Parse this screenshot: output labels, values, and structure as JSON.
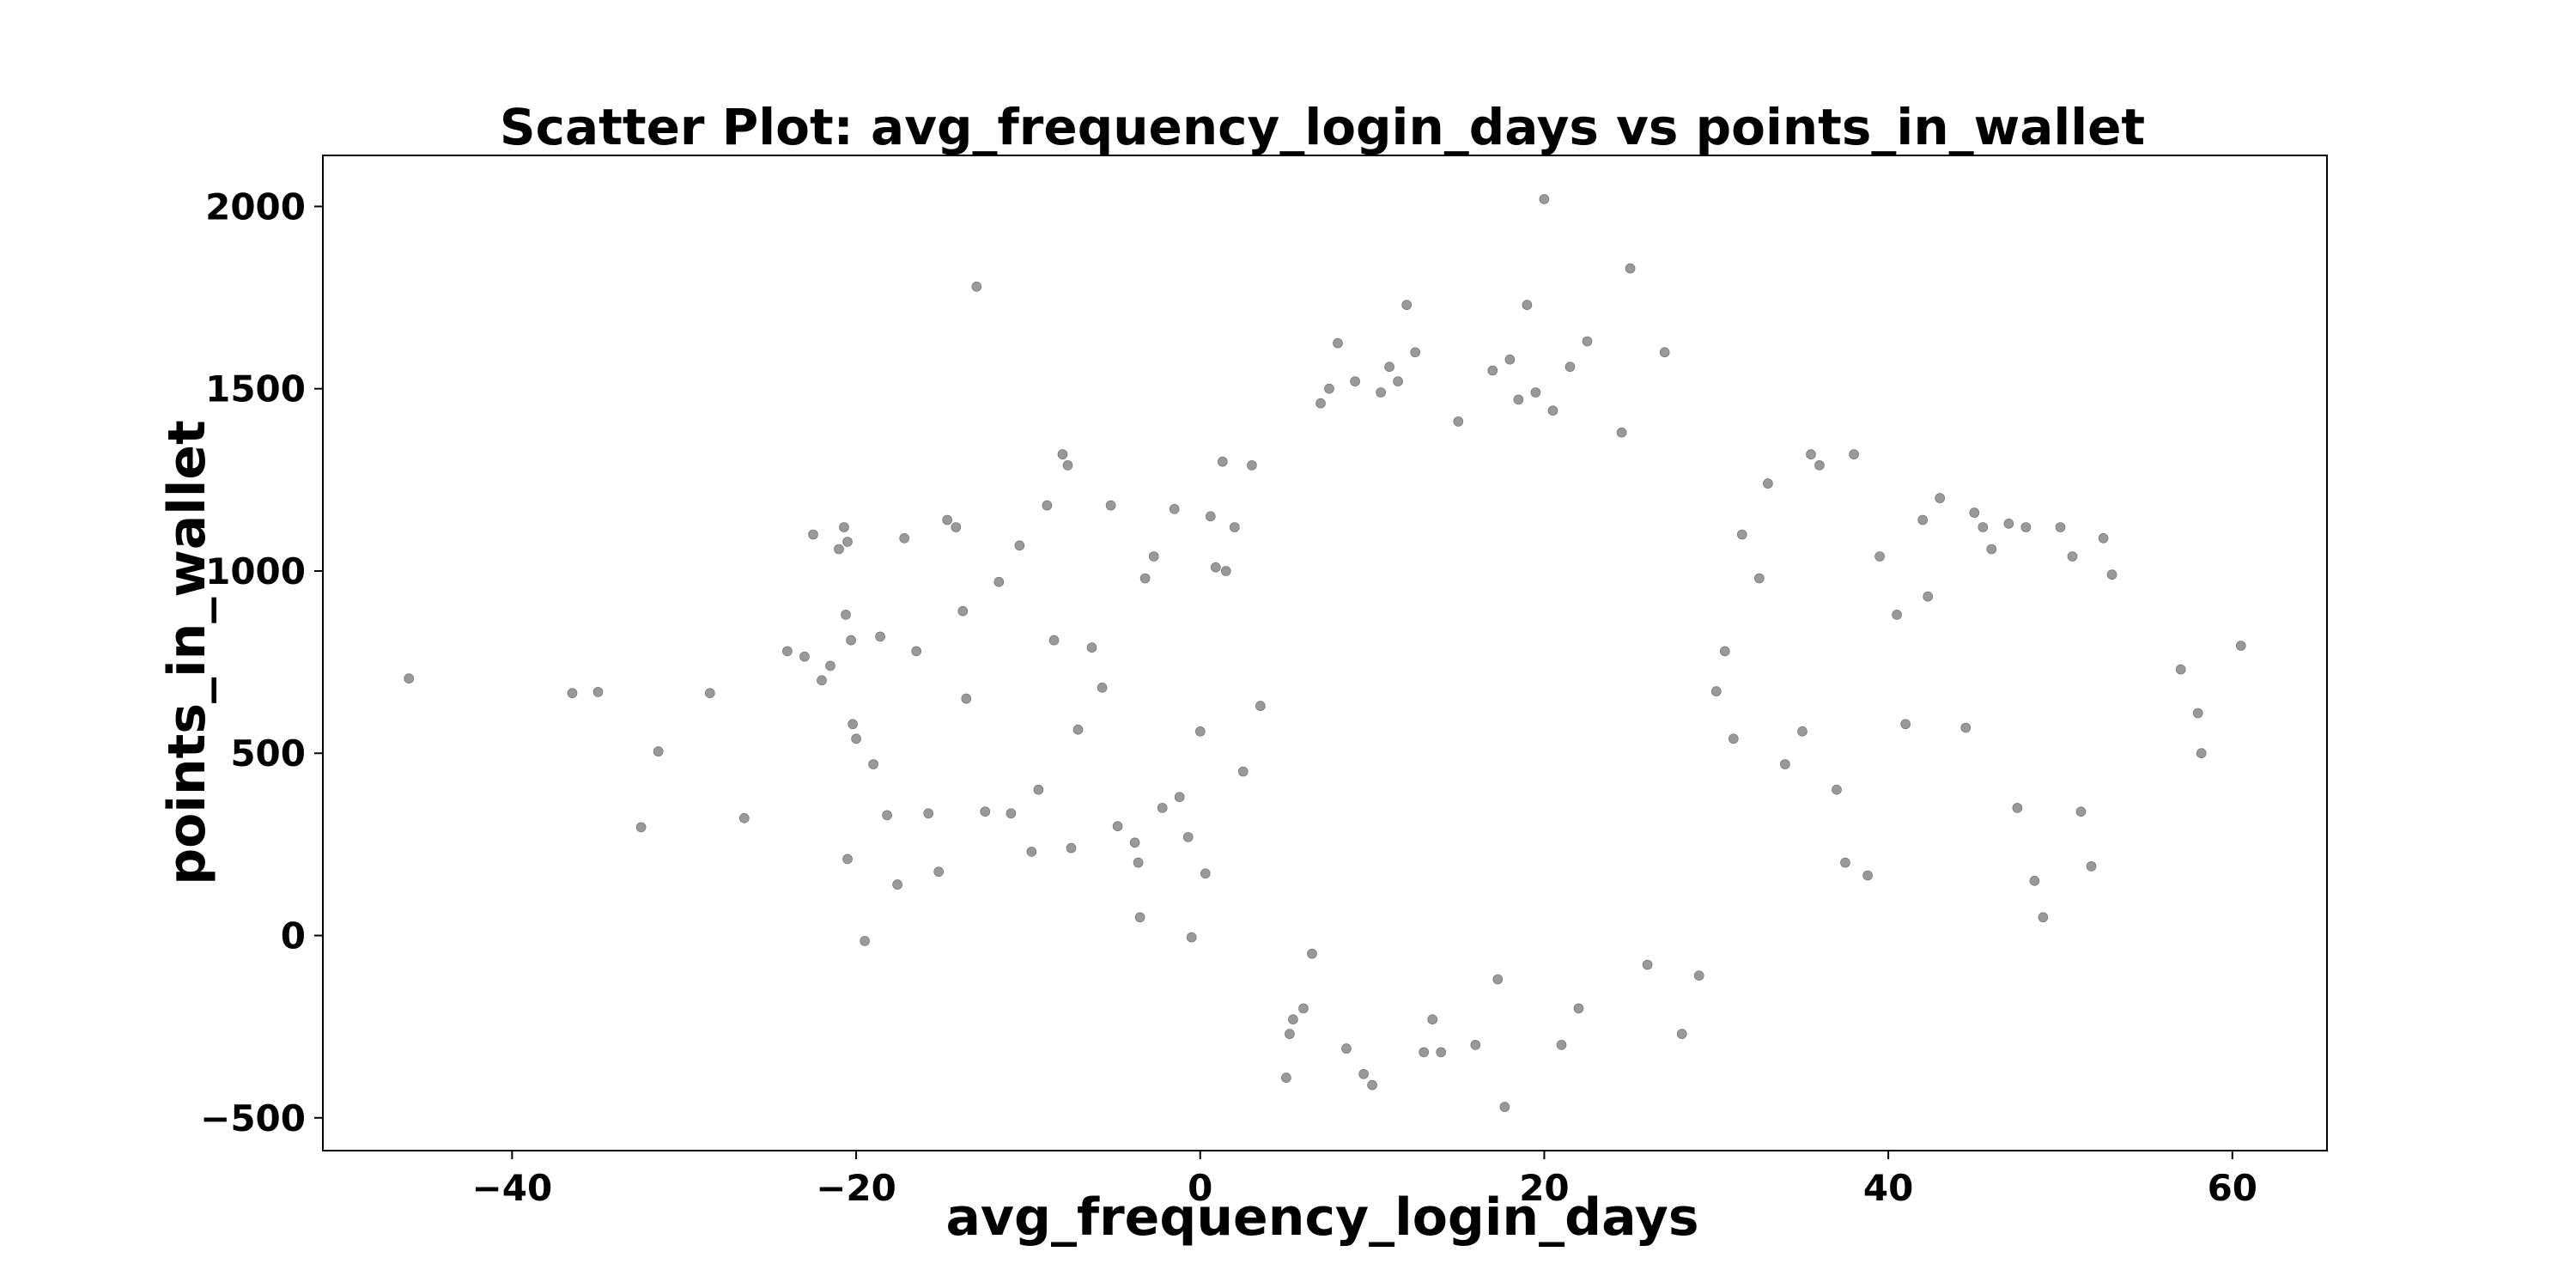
{
  "chart_data": {
    "type": "scatter",
    "title": "Scatter Plot: avg_frequency_login_days vs points_in_wallet",
    "xlabel": "avg_frequency_login_days",
    "ylabel": "points_in_wallet",
    "xlim": [
      -51,
      65.5
    ],
    "ylim": [
      -590,
      2140
    ],
    "xticks": [
      -40,
      -20,
      0,
      20,
      40,
      60
    ],
    "yticks": [
      -500,
      0,
      500,
      1000,
      1500,
      2000
    ],
    "xtick_labels": [
      "−40",
      "−20",
      "0",
      "20",
      "40",
      "60"
    ],
    "ytick_labels": [
      "−500",
      "0",
      "500",
      "1000",
      "1500",
      "2000"
    ],
    "grid": false,
    "series": [
      {
        "color": "#808080",
        "points": [
          [
            -46,
            705
          ],
          [
            -36.5,
            665
          ],
          [
            -35,
            668
          ],
          [
            -31.5,
            505
          ],
          [
            -32.5,
            297
          ],
          [
            -28.5,
            665
          ],
          [
            -26.5,
            322
          ],
          [
            -24,
            780
          ],
          [
            -23,
            765
          ],
          [
            -22.5,
            1100
          ],
          [
            -22,
            700
          ],
          [
            -21.5,
            740
          ],
          [
            -21,
            1060
          ],
          [
            -20.7,
            1120
          ],
          [
            -20.5,
            1080
          ],
          [
            -20.6,
            880
          ],
          [
            -20.3,
            810
          ],
          [
            -20.2,
            580
          ],
          [
            -20,
            540
          ],
          [
            -20.5,
            210
          ],
          [
            -19.5,
            -15
          ],
          [
            -19,
            470
          ],
          [
            -18.6,
            820
          ],
          [
            -18.2,
            330
          ],
          [
            -17.6,
            140
          ],
          [
            -17.2,
            1090
          ],
          [
            -16.5,
            780
          ],
          [
            -15.8,
            335
          ],
          [
            -15.2,
            175
          ],
          [
            -14.7,
            1140
          ],
          [
            -14.2,
            1120
          ],
          [
            -13.8,
            890
          ],
          [
            -13.6,
            650
          ],
          [
            -13,
            1780
          ],
          [
            -12.5,
            340
          ],
          [
            -11.7,
            970
          ],
          [
            -11,
            335
          ],
          [
            -10.5,
            1070
          ],
          [
            -9.8,
            230
          ],
          [
            -9.4,
            400
          ],
          [
            -8.9,
            1180
          ],
          [
            -8.5,
            810
          ],
          [
            -8,
            1320
          ],
          [
            -7.7,
            1290
          ],
          [
            -7.5,
            240
          ],
          [
            -7.1,
            565
          ],
          [
            -6.3,
            790
          ],
          [
            -5.7,
            680
          ],
          [
            -5.2,
            1180
          ],
          [
            -4.8,
            300
          ],
          [
            -3.8,
            255
          ],
          [
            -3.6,
            200
          ],
          [
            -3.5,
            50
          ],
          [
            -3.2,
            980
          ],
          [
            -2.7,
            1040
          ],
          [
            -2.2,
            350
          ],
          [
            -1.5,
            1170
          ],
          [
            -1.2,
            380
          ],
          [
            -0.7,
            270
          ],
          [
            -0.5,
            -5
          ],
          [
            0,
            560
          ],
          [
            0.3,
            170
          ],
          [
            0.6,
            1150
          ],
          [
            0.9,
            1010
          ],
          [
            1.3,
            1300
          ],
          [
            1.5,
            1000
          ],
          [
            2,
            1120
          ],
          [
            2.5,
            450
          ],
          [
            3,
            1290
          ],
          [
            3.5,
            630
          ],
          [
            5,
            -390
          ],
          [
            5.2,
            -270
          ],
          [
            5.4,
            -230
          ],
          [
            6,
            -200
          ],
          [
            6.5,
            -50
          ],
          [
            7,
            1460
          ],
          [
            7.5,
            1500
          ],
          [
            8,
            1625
          ],
          [
            8.5,
            -310
          ],
          [
            9,
            1520
          ],
          [
            9.5,
            -380
          ],
          [
            10,
            -410
          ],
          [
            10.5,
            1490
          ],
          [
            11,
            1560
          ],
          [
            11.5,
            1520
          ],
          [
            12,
            1730
          ],
          [
            12.5,
            1600
          ],
          [
            13,
            -320
          ],
          [
            13.5,
            -230
          ],
          [
            14,
            -320
          ],
          [
            15,
            1410
          ],
          [
            16,
            -300
          ],
          [
            17,
            1550
          ],
          [
            17.3,
            -120
          ],
          [
            17.7,
            -470
          ],
          [
            18,
            1580
          ],
          [
            18.5,
            1470
          ],
          [
            19,
            1730
          ],
          [
            19.5,
            1490
          ],
          [
            20,
            2020
          ],
          [
            20.5,
            1440
          ],
          [
            21,
            -300
          ],
          [
            21.5,
            1560
          ],
          [
            22,
            -200
          ],
          [
            22.5,
            1630
          ],
          [
            24.5,
            1380
          ],
          [
            25,
            1830
          ],
          [
            26,
            -80
          ],
          [
            27,
            1600
          ],
          [
            28,
            -270
          ],
          [
            29,
            -110
          ],
          [
            30,
            670
          ],
          [
            30.5,
            780
          ],
          [
            31,
            540
          ],
          [
            31.5,
            1100
          ],
          [
            32.5,
            980
          ],
          [
            33,
            1240
          ],
          [
            34,
            470
          ],
          [
            35,
            560
          ],
          [
            35.5,
            1320
          ],
          [
            36,
            1290
          ],
          [
            37,
            400
          ],
          [
            37.5,
            200
          ],
          [
            38,
            1320
          ],
          [
            38.8,
            165
          ],
          [
            39.5,
            1040
          ],
          [
            40.5,
            880
          ],
          [
            41,
            580
          ],
          [
            42,
            1140
          ],
          [
            42.3,
            930
          ],
          [
            43,
            1200
          ],
          [
            44.5,
            570
          ],
          [
            45,
            1160
          ],
          [
            45.5,
            1120
          ],
          [
            46,
            1060
          ],
          [
            47,
            1130
          ],
          [
            47.5,
            350
          ],
          [
            48,
            1120
          ],
          [
            48.5,
            150
          ],
          [
            49,
            50
          ],
          [
            50,
            1120
          ],
          [
            50.7,
            1040
          ],
          [
            51.2,
            340
          ],
          [
            51.8,
            190
          ],
          [
            52.5,
            1090
          ],
          [
            53,
            990
          ],
          [
            57,
            730
          ],
          [
            58,
            610
          ],
          [
            58.2,
            500
          ],
          [
            60.5,
            795
          ]
        ]
      }
    ]
  }
}
